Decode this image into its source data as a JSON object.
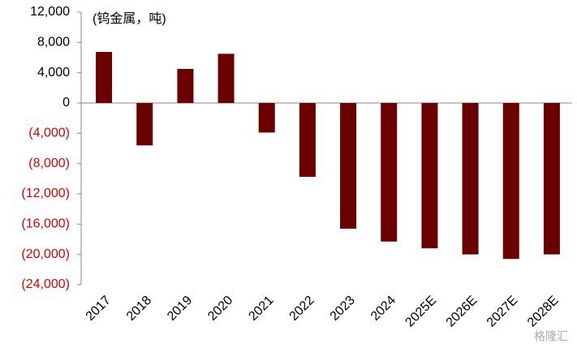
{
  "chart_data": {
    "type": "bar",
    "annotation": "(钨金属，吨)",
    "watermark": "格隆汇",
    "categories": [
      "2017",
      "2018",
      "2019",
      "2020",
      "2021",
      "2022",
      "2023",
      "2024",
      "2025E",
      "2026E",
      "2027E",
      "2028E"
    ],
    "values": [
      6750,
      -5600,
      4500,
      6500,
      -3900,
      -9750,
      -16600,
      -18300,
      -19200,
      -20000,
      -20600,
      -20000
    ],
    "color": "#6b0000",
    "negative_tick_color": "#e00000",
    "ylim": [
      -24000,
      12000
    ],
    "yticks": [
      {
        "value": -24000,
        "label": "(24,000)"
      },
      {
        "value": -20000,
        "label": "(20,000)"
      },
      {
        "value": -16000,
        "label": "(16,000)"
      },
      {
        "value": -12000,
        "label": "(12,000)"
      },
      {
        "value": -8000,
        "label": "(8,000)"
      },
      {
        "value": -4000,
        "label": "(4,000)"
      },
      0,
      {
        "value": 4000,
        "label": "4,000"
      },
      {
        "value": 8000,
        "label": "8,000"
      },
      {
        "value": 12000,
        "label": "12,000"
      }
    ]
  }
}
